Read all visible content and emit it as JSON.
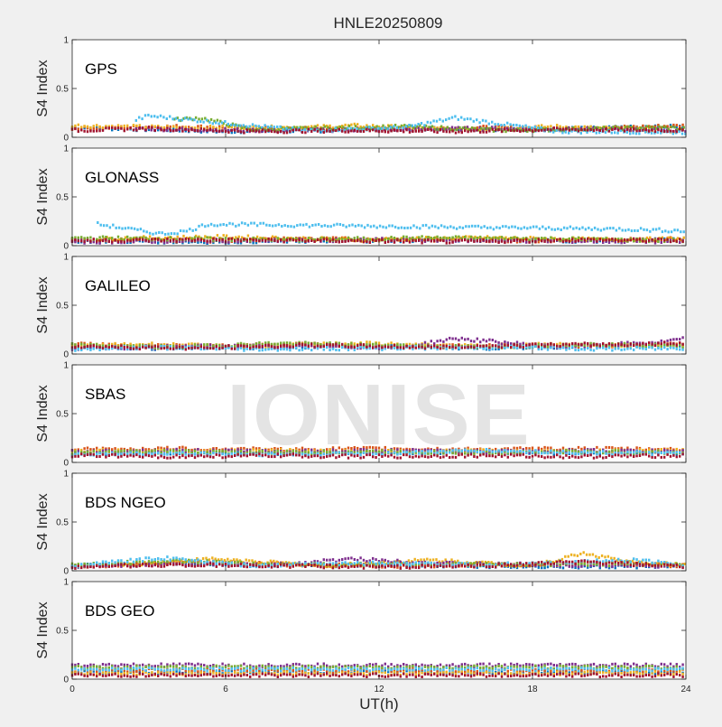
{
  "chart_data": {
    "type": "scatter",
    "title": "HNLE20250809",
    "xlabel": "UT(h)",
    "ylabel": "S4 Index",
    "xlim": [
      0,
      24
    ],
    "ylim": [
      0,
      1
    ],
    "x_ticks": [
      "0",
      "6",
      "12",
      "18",
      "24"
    ],
    "y_ticks": [
      "0",
      "0.5",
      "1"
    ],
    "watermark": "IONISE",
    "series_colors": [
      "#0072BD",
      "#D95319",
      "#EDB120",
      "#7E2F8E",
      "#77AC30",
      "#4DBEEE",
      "#A2142F"
    ],
    "panels": [
      {
        "label": "GPS",
        "tracks": [
          {
            "color": 0,
            "x": [
              0,
              3,
              6,
              10,
              14,
              18,
              22,
              24
            ],
            "y": [
              0.1,
              0.08,
              0.06,
              0.07,
              0.09,
              0.08,
              0.1,
              0.11
            ]
          },
          {
            "color": 1,
            "x": [
              0,
              4,
              8,
              12,
              16,
              20,
              24
            ],
            "y": [
              0.09,
              0.11,
              0.09,
              0.08,
              0.1,
              0.09,
              0.12
            ]
          },
          {
            "color": 2,
            "x": [
              0,
              4,
              9,
              11,
              15,
              19,
              24
            ],
            "y": [
              0.12,
              0.1,
              0.1,
              0.12,
              0.08,
              0.11,
              0.06
            ]
          },
          {
            "color": 3,
            "x": [
              2.5,
              4,
              8,
              13,
              16,
              21,
              24
            ],
            "y": [
              0.09,
              0.08,
              0.07,
              0.08,
              0.09,
              0.08,
              0.07
            ]
          },
          {
            "color": 4,
            "x": [
              4,
              5,
              7,
              13,
              17,
              23,
              24
            ],
            "y": [
              0.18,
              0.2,
              0.08,
              0.11,
              0.07,
              0.1,
              0.09
            ]
          },
          {
            "color": 5,
            "x": [
              2.5,
              3,
              9,
              13,
              15,
              19,
              24
            ],
            "y": [
              0.18,
              0.22,
              0.07,
              0.1,
              0.2,
              0.06,
              0.05
            ]
          },
          {
            "color": 6,
            "x": [
              0,
              3,
              7,
              11,
              15,
              19,
              24
            ],
            "y": [
              0.07,
              0.09,
              0.06,
              0.07,
              0.06,
              0.08,
              0.07
            ]
          }
        ]
      },
      {
        "label": "GLONASS",
        "tracks": [
          {
            "color": 0,
            "x": [
              0,
              5,
              10,
              15,
              20,
              24
            ],
            "y": [
              0.05,
              0.04,
              0.05,
              0.06,
              0.05,
              0.06
            ]
          },
          {
            "color": 1,
            "x": [
              0,
              5,
              9,
              14,
              19,
              24
            ],
            "y": [
              0.06,
              0.05,
              0.07,
              0.06,
              0.05,
              0.07
            ]
          },
          {
            "color": 2,
            "x": [
              1,
              6,
              11,
              16,
              21,
              24
            ],
            "y": [
              0.07,
              0.09,
              0.06,
              0.08,
              0.06,
              0.07
            ]
          },
          {
            "color": 3,
            "x": [
              0,
              6,
              12,
              18,
              24
            ],
            "y": [
              0.04,
              0.05,
              0.06,
              0.05,
              0.04
            ]
          },
          {
            "color": 4,
            "x": [
              0,
              4,
              9,
              14,
              19,
              24
            ],
            "y": [
              0.08,
              0.07,
              0.06,
              0.08,
              0.07,
              0.05
            ]
          },
          {
            "color": 5,
            "x": [
              1,
              1.5,
              2.5,
              3.5,
              4.5,
              5.3,
              21.5,
              24
            ],
            "y": [
              0.22,
              0.2,
              0.16,
              0.12,
              0.15,
              0.22,
              0.17,
              0.15
            ]
          },
          {
            "color": 6,
            "x": [
              0,
              5,
              10,
              15,
              20,
              24
            ],
            "y": [
              0.05,
              0.06,
              0.05,
              0.04,
              0.06,
              0.05
            ]
          }
        ]
      },
      {
        "label": "GALILEO",
        "tracks": [
          {
            "color": 0,
            "x": [
              0,
              4,
              8,
              12,
              16,
              20,
              24
            ],
            "y": [
              0.07,
              0.06,
              0.07,
              0.09,
              0.06,
              0.08,
              0.09
            ]
          },
          {
            "color": 1,
            "x": [
              0,
              5,
              9,
              13,
              17,
              21,
              24
            ],
            "y": [
              0.1,
              0.08,
              0.1,
              0.07,
              0.09,
              0.08,
              0.1
            ]
          },
          {
            "color": 2,
            "x": [
              0,
              3,
              7,
              11,
              15,
              19,
              24
            ],
            "y": [
              0.08,
              0.1,
              0.07,
              0.11,
              0.08,
              0.1,
              0.08
            ]
          },
          {
            "color": 3,
            "x": [
              0,
              6,
              13,
              15,
              19,
              23,
              24
            ],
            "y": [
              0.06,
              0.08,
              0.07,
              0.16,
              0.07,
              0.12,
              0.16
            ]
          },
          {
            "color": 4,
            "x": [
              0,
              4,
              8,
              12,
              16,
              20,
              24
            ],
            "y": [
              0.09,
              0.07,
              0.11,
              0.09,
              0.07,
              0.1,
              0.08
            ]
          },
          {
            "color": 5,
            "x": [
              0,
              3,
              7,
              12,
              17,
              21,
              24
            ],
            "y": [
              0.05,
              0.07,
              0.05,
              0.06,
              0.07,
              0.05,
              0.06
            ]
          },
          {
            "color": 6,
            "x": [
              0,
              5,
              9,
              14,
              18,
              22,
              24
            ],
            "y": [
              0.08,
              0.06,
              0.09,
              0.07,
              0.09,
              0.1,
              0.11
            ]
          }
        ]
      },
      {
        "label": "SBAS",
        "tracks": [
          {
            "color": 0,
            "x": [
              0,
              4,
              8,
              12,
              16,
              20,
              24
            ],
            "y": [
              0.09,
              0.1,
              0.09,
              0.1,
              0.11,
              0.09,
              0.1
            ]
          },
          {
            "color": 1,
            "x": [
              0,
              4,
              8,
              12,
              16,
              20,
              24
            ],
            "y": [
              0.13,
              0.14,
              0.13,
              0.14,
              0.13,
              0.14,
              0.13
            ]
          },
          {
            "color": 2,
            "x": [
              0,
              4,
              8,
              12,
              16,
              20,
              24
            ],
            "y": [
              0.12,
              0.11,
              0.12,
              0.11,
              0.12,
              0.11,
              0.12
            ]
          },
          {
            "color": 3,
            "x": [
              0,
              4,
              8,
              12,
              16,
              20,
              24
            ],
            "y": [
              0.11,
              0.12,
              0.11,
              0.12,
              0.11,
              0.12,
              0.11
            ]
          },
          {
            "color": 4,
            "x": [
              0,
              4,
              8,
              12,
              16,
              20,
              24
            ],
            "y": [
              0.1,
              0.11,
              0.1,
              0.11,
              0.1,
              0.11,
              0.1
            ]
          },
          {
            "color": 5,
            "x": [
              0,
              4,
              8,
              12,
              16,
              20,
              24
            ],
            "y": [
              0.08,
              0.09,
              0.08,
              0.09,
              0.12,
              0.1,
              0.09
            ]
          },
          {
            "color": 6,
            "x": [
              0,
              4,
              8,
              12,
              16,
              20,
              24
            ],
            "y": [
              0.07,
              0.06,
              0.07,
              0.06,
              0.07,
              0.06,
              0.07
            ]
          }
        ]
      },
      {
        "label": "BDS NGEO",
        "tracks": [
          {
            "color": 0,
            "x": [
              0,
              4,
              8,
              12,
              16,
              20,
              24
            ],
            "y": [
              0.05,
              0.08,
              0.05,
              0.06,
              0.05,
              0.04,
              0.05
            ]
          },
          {
            "color": 1,
            "x": [
              0,
              5,
              9,
              13,
              17,
              21,
              24
            ],
            "y": [
              0.04,
              0.09,
              0.06,
              0.05,
              0.06,
              0.08,
              0.05
            ]
          },
          {
            "color": 2,
            "x": [
              2,
              5.5,
              10,
              14,
              18,
              20,
              22,
              24
            ],
            "y": [
              0.06,
              0.12,
              0.05,
              0.11,
              0.05,
              0.18,
              0.08,
              0.06
            ]
          },
          {
            "color": 3,
            "x": [
              0,
              4,
              8,
              11,
              15,
              19,
              24
            ],
            "y": [
              0.05,
              0.07,
              0.06,
              0.12,
              0.07,
              0.06,
              0.05
            ]
          },
          {
            "color": 4,
            "x": [
              0,
              4,
              8,
              12,
              16,
              20,
              24
            ],
            "y": [
              0.06,
              0.1,
              0.06,
              0.07,
              0.06,
              0.07,
              0.06
            ]
          },
          {
            "color": 5,
            "x": [
              0,
              3.5,
              7,
              12,
              16,
              22,
              24
            ],
            "y": [
              0.05,
              0.13,
              0.05,
              0.08,
              0.06,
              0.11,
              0.06
            ]
          },
          {
            "color": 6,
            "x": [
              0,
              4,
              8,
              12,
              16,
              20,
              24
            ],
            "y": [
              0.04,
              0.06,
              0.05,
              0.04,
              0.05,
              0.09,
              0.04
            ]
          }
        ]
      },
      {
        "label": "BDS GEO",
        "tracks": [
          {
            "color": 0,
            "x": [
              0,
              24
            ],
            "y": [
              0.07,
              0.07
            ]
          },
          {
            "color": 1,
            "x": [
              0,
              24
            ],
            "y": [
              0.09,
              0.09
            ]
          },
          {
            "color": 2,
            "x": [
              0,
              24
            ],
            "y": [
              0.06,
              0.06
            ]
          },
          {
            "color": 3,
            "x": [
              0,
              24
            ],
            "y": [
              0.14,
              0.14
            ]
          },
          {
            "color": 4,
            "x": [
              0,
              24
            ],
            "y": [
              0.12,
              0.12
            ]
          },
          {
            "color": 5,
            "x": [
              0,
              24
            ],
            "y": [
              0.1,
              0.1
            ]
          },
          {
            "color": 6,
            "x": [
              0,
              24
            ],
            "y": [
              0.04,
              0.04
            ]
          }
        ]
      }
    ]
  }
}
